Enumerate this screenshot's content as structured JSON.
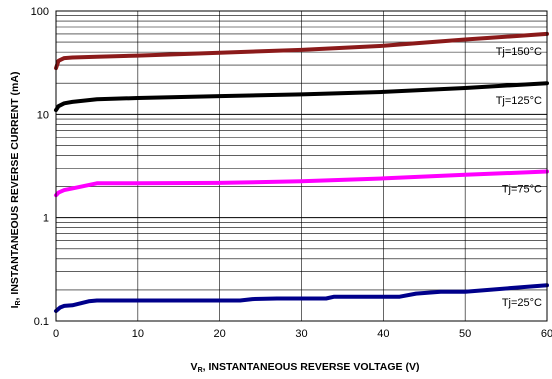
{
  "chart_data": {
    "type": "line",
    "xlabel": {
      "main": "V",
      "sub": "R",
      "rest": ", INSTANTANEOUS REVERSE VOLTAGE (V)"
    },
    "ylabel": {
      "main": "I",
      "sub": "R",
      "rest": ", INSTANTANEOUS REVERSE CURRENT (mA)"
    },
    "xlim": [
      0,
      60
    ],
    "ylim": [
      0.1,
      100
    ],
    "yscale": "log",
    "x_ticks": [
      "0",
      "10",
      "20",
      "30",
      "40",
      "50",
      "60"
    ],
    "y_ticks": [
      "0.1",
      "1",
      "10",
      "100"
    ],
    "grid": true,
    "series": [
      {
        "name": "Tj=150°C",
        "color": "#8b1a1a",
        "points": [
          [
            0,
            28
          ],
          [
            0.3,
            33
          ],
          [
            1,
            35
          ],
          [
            2,
            35.5
          ],
          [
            5,
            36
          ],
          [
            10,
            37
          ],
          [
            20,
            39.5
          ],
          [
            30,
            42
          ],
          [
            40,
            46
          ],
          [
            50,
            53
          ],
          [
            60,
            60
          ]
        ]
      },
      {
        "name": "Tj=125°C",
        "color": "#000000",
        "points": [
          [
            0,
            11
          ],
          [
            0.3,
            12
          ],
          [
            1,
            12.8
          ],
          [
            2,
            13.2
          ],
          [
            5,
            14
          ],
          [
            10,
            14.4
          ],
          [
            20,
            15
          ],
          [
            30,
            15.6
          ],
          [
            40,
            16.5
          ],
          [
            50,
            18
          ],
          [
            60,
            20
          ]
        ]
      },
      {
        "name": "Tj=75°C",
        "color": "#ff00ff",
        "points": [
          [
            0,
            1.65
          ],
          [
            0.3,
            1.75
          ],
          [
            1,
            1.85
          ],
          [
            2,
            1.92
          ],
          [
            5,
            2.15
          ],
          [
            10,
            2.15
          ],
          [
            20,
            2.17
          ],
          [
            30,
            2.25
          ],
          [
            40,
            2.4
          ],
          [
            50,
            2.6
          ],
          [
            60,
            2.8
          ]
        ]
      },
      {
        "name": "Tj=25°C",
        "color": "#00008b",
        "points": [
          [
            0,
            0.125
          ],
          [
            0.5,
            0.135
          ],
          [
            1,
            0.14
          ],
          [
            2,
            0.142
          ],
          [
            4,
            0.155
          ],
          [
            5,
            0.158
          ],
          [
            10,
            0.158
          ],
          [
            22.5,
            0.158
          ],
          [
            24,
            0.163
          ],
          [
            27,
            0.165
          ],
          [
            33,
            0.165
          ],
          [
            34,
            0.172
          ],
          [
            42,
            0.172
          ],
          [
            44,
            0.184
          ],
          [
            47,
            0.192
          ],
          [
            50,
            0.192
          ],
          [
            60,
            0.222
          ]
        ]
      }
    ]
  }
}
